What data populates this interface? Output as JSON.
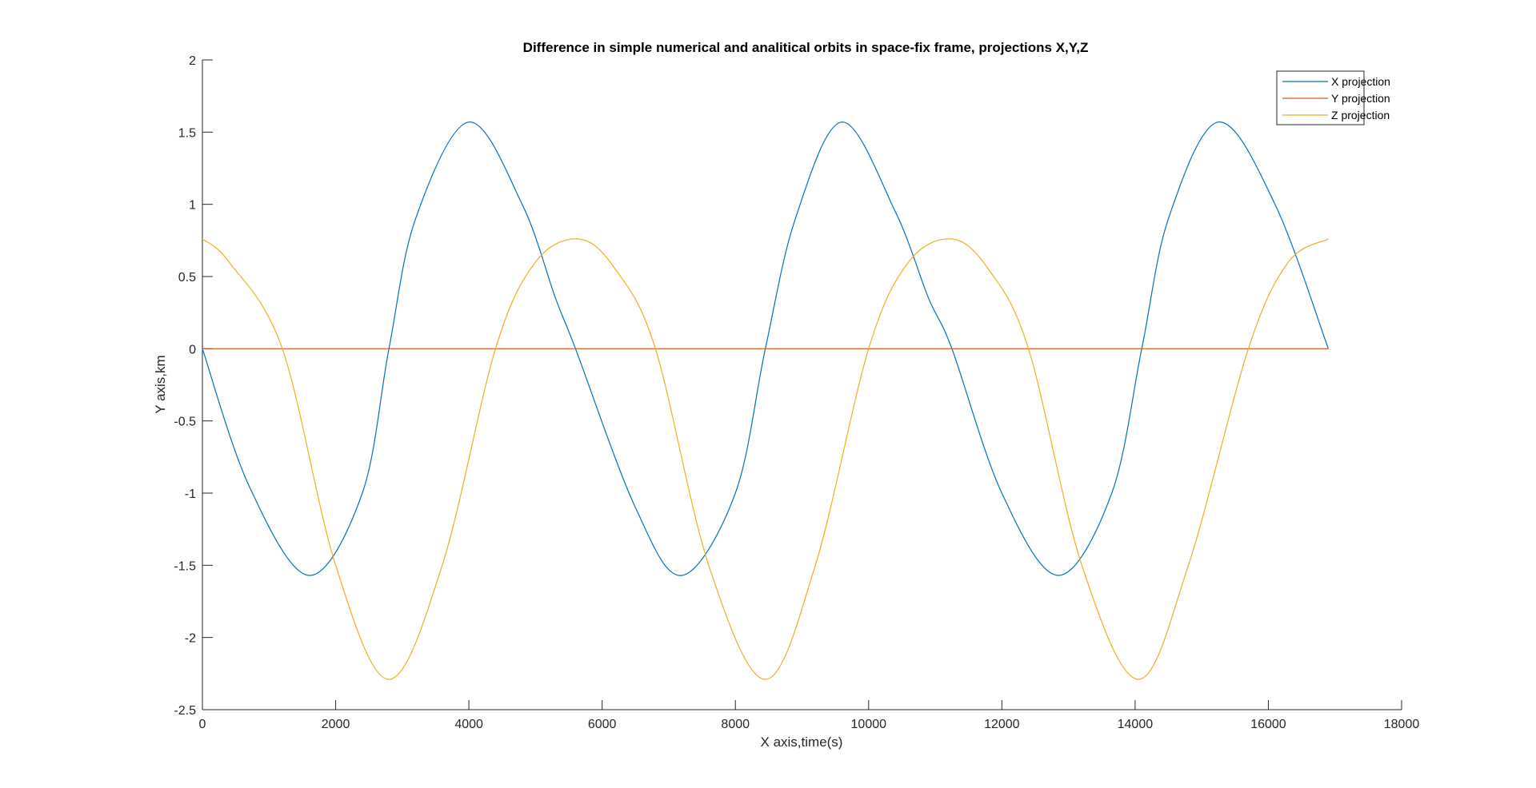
{
  "chart_data": {
    "type": "line",
    "title": "Difference in simple numerical and analitical orbits in space-fix frame, projections X,Y,Z",
    "xlabel": "X axis,time(s)",
    "ylabel": "Y axis,km",
    "xlim": [
      0,
      18000
    ],
    "ylim": [
      -2.5,
      2
    ],
    "xticks": [
      0,
      2000,
      4000,
      6000,
      8000,
      10000,
      12000,
      14000,
      16000,
      18000
    ],
    "xtick_labels": [
      "0",
      "2000",
      "4000",
      "6000",
      "8000",
      "10000",
      "12000",
      "14000",
      "16000",
      "18000"
    ],
    "yticks": [
      2,
      1.5,
      1,
      0.5,
      0,
      -0.5,
      -1,
      -1.5,
      -2,
      -2.5
    ],
    "ytick_labels": [
      "2",
      "1.5",
      "1",
      "0.5",
      "0",
      "-0.5",
      "-1",
      "-1.5",
      "-2",
      "-2.5"
    ],
    "grid": false,
    "legend_position": "top-right",
    "series": [
      {
        "name": "X projection",
        "color": "#0072BD",
        "x": [
          0,
          700,
          1600,
          2400,
          2800,
          3200,
          4000,
          4800,
          5300,
          5600,
          6500,
          7200,
          8000,
          8450,
          8900,
          9600,
          10400,
          10900,
          11250,
          12000,
          12850,
          13650,
          14100,
          14500,
          15250,
          16100,
          16900
        ],
        "y": [
          0,
          -0.95,
          -1.57,
          -1.0,
          0.0,
          0.9,
          1.57,
          1.0,
          0.35,
          0.0,
          -1.1,
          -1.57,
          -1.0,
          0.0,
          0.9,
          1.57,
          0.95,
          0.35,
          0.0,
          -1.0,
          -1.57,
          -1.0,
          0.0,
          0.9,
          1.57,
          1.0,
          0.0
        ]
      },
      {
        "name": "Y projection",
        "color": "#D95319",
        "x": [
          0,
          16900
        ],
        "y": [
          0,
          0
        ]
      },
      {
        "name": "Z projection",
        "color": "#EDB120",
        "x": [
          0,
          400,
          1200,
          2000,
          2800,
          3600,
          4400,
          5000,
          5650,
          6200,
          6800,
          7600,
          8450,
          9200,
          10000,
          10600,
          11250,
          11800,
          12400,
          13200,
          14050,
          14800,
          15700,
          16300,
          16900
        ],
        "y": [
          0.76,
          0.6,
          0.0,
          -1.5,
          -2.29,
          -1.5,
          0.0,
          0.6,
          0.76,
          0.55,
          0.0,
          -1.5,
          -2.29,
          -1.5,
          0.0,
          0.6,
          0.76,
          0.55,
          0.0,
          -1.5,
          -2.29,
          -1.5,
          0.0,
          0.6,
          0.76
        ]
      }
    ]
  }
}
